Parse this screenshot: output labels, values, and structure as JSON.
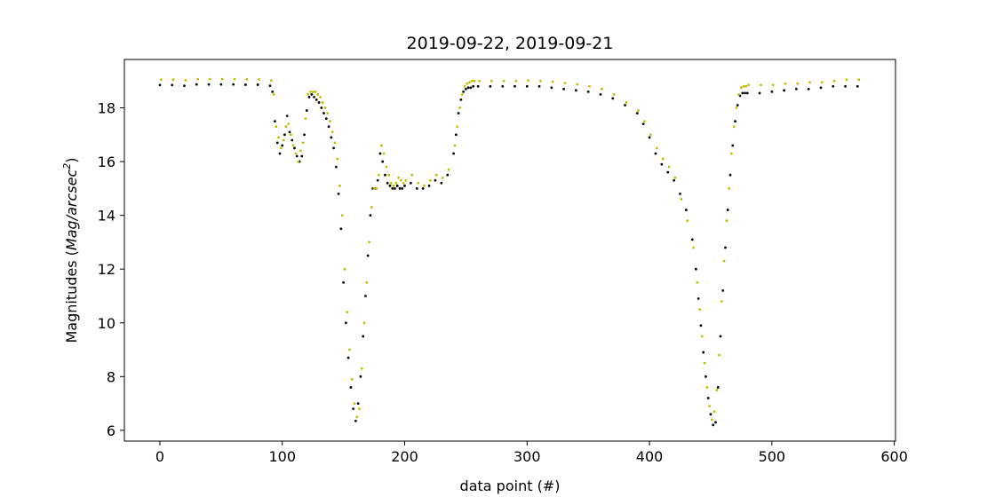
{
  "chart_data": {
    "type": "scatter",
    "title": "2019-09-22, 2019-09-21",
    "xlabel": "data point (#)",
    "ylabel_prefix": "Magnitudes (",
    "ylabel_italic": "Mag/arcsec",
    "ylabel_sup": "2",
    "ylabel_suffix": ")",
    "xlim": [
      -29,
      601
    ],
    "ylim": [
      5.6,
      19.8
    ],
    "xticks": [
      "0",
      "100",
      "200",
      "300",
      "400",
      "500",
      "600"
    ],
    "yticks": [
      "6",
      "8",
      "10",
      "12",
      "14",
      "16",
      "18"
    ],
    "grid": false,
    "legend": "none",
    "series_colors": [
      "#000000",
      "#bfbf00"
    ],
    "series": [
      {
        "color": "#000000",
        "x": [
          0,
          10,
          20,
          30,
          40,
          50,
          60,
          70,
          80,
          90,
          92,
          94,
          96,
          98,
          100,
          102,
          104,
          106,
          108,
          110,
          112,
          114,
          116,
          118,
          120,
          122,
          124,
          126,
          128,
          130,
          132,
          134,
          136,
          138,
          140,
          142,
          144,
          146,
          148,
          150,
          152,
          154,
          156,
          158,
          160,
          162,
          164,
          166,
          168,
          170,
          172,
          174,
          176,
          178,
          180,
          182,
          184,
          186,
          188,
          190,
          192,
          194,
          196,
          198,
          200,
          205,
          210,
          215,
          220,
          225,
          230,
          235,
          240,
          242,
          244,
          246,
          248,
          250,
          252,
          254,
          256,
          260,
          270,
          280,
          290,
          300,
          310,
          320,
          330,
          340,
          350,
          360,
          370,
          380,
          390,
          395,
          400,
          405,
          410,
          415,
          420,
          425,
          430,
          435,
          438,
          440,
          442,
          444,
          446,
          448,
          450,
          452,
          454,
          456,
          458,
          460,
          462,
          464,
          466,
          468,
          470,
          472,
          474,
          476,
          478,
          480,
          490,
          500,
          510,
          520,
          530,
          540,
          550,
          560,
          570
        ],
        "y": [
          18.85,
          18.85,
          18.82,
          18.87,
          18.87,
          18.87,
          18.87,
          18.86,
          18.86,
          18.82,
          18.6,
          17.5,
          16.7,
          16.3,
          16.6,
          17.0,
          17.7,
          17.1,
          16.8,
          16.5,
          16.2,
          16.0,
          16.2,
          17.0,
          17.9,
          18.4,
          18.5,
          18.4,
          18.3,
          18.2,
          18.0,
          17.8,
          17.6,
          17.3,
          16.9,
          16.5,
          15.8,
          14.8,
          13.5,
          11.5,
          10.0,
          8.7,
          7.6,
          6.8,
          6.35,
          7.0,
          8.0,
          9.5,
          11.0,
          12.5,
          14.0,
          15.0,
          15.0,
          15.3,
          16.3,
          16.0,
          15.5,
          15.2,
          15.1,
          15.0,
          15.0,
          15.1,
          15.0,
          15.0,
          15.1,
          15.2,
          15.0,
          15.0,
          15.1,
          15.3,
          15.2,
          15.5,
          16.3,
          17.0,
          17.8,
          18.3,
          18.6,
          18.7,
          18.75,
          18.75,
          18.8,
          18.8,
          18.8,
          18.8,
          18.8,
          18.8,
          18.8,
          18.75,
          18.7,
          18.65,
          18.6,
          18.5,
          18.35,
          18.1,
          17.8,
          17.4,
          16.9,
          16.3,
          15.9,
          15.6,
          15.3,
          14.8,
          14.2,
          13.1,
          12.0,
          10.9,
          9.9,
          8.9,
          8.0,
          7.2,
          6.6,
          6.2,
          6.3,
          7.6,
          9.5,
          11.2,
          12.8,
          14.2,
          15.5,
          16.6,
          17.5,
          18.1,
          18.45,
          18.55,
          18.55,
          18.55,
          18.55,
          18.6,
          18.65,
          18.7,
          18.7,
          18.75,
          18.8,
          18.8,
          18.8
        ]
      },
      {
        "color": "#bfbf00",
        "x": [
          1,
          11,
          21,
          31,
          41,
          51,
          61,
          71,
          81,
          91,
          93,
          95,
          97,
          99,
          101,
          103,
          105,
          107,
          109,
          111,
          113,
          115,
          117,
          119,
          121,
          123,
          125,
          127,
          129,
          131,
          133,
          135,
          137,
          139,
          141,
          143,
          145,
          147,
          149,
          151,
          153,
          155,
          157,
          159,
          161,
          163,
          165,
          167,
          169,
          171,
          173,
          175,
          177,
          179,
          181,
          183,
          185,
          187,
          189,
          191,
          193,
          195,
          197,
          199,
          201,
          206,
          211,
          216,
          221,
          226,
          231,
          236,
          241,
          243,
          245,
          247,
          249,
          251,
          253,
          255,
          257,
          261,
          271,
          281,
          291,
          301,
          311,
          321,
          331,
          341,
          351,
          361,
          371,
          381,
          391,
          396,
          401,
          406,
          411,
          416,
          421,
          426,
          431,
          436,
          439,
          441,
          443,
          445,
          447,
          449,
          451,
          453,
          455,
          457,
          459,
          461,
          463,
          465,
          467,
          469,
          471,
          473,
          475,
          477,
          479,
          481,
          491,
          501,
          511,
          521,
          531,
          541,
          551,
          561,
          571
        ],
        "y": [
          19.05,
          19.05,
          19.03,
          19.07,
          19.07,
          19.07,
          19.07,
          19.06,
          19.06,
          19.02,
          18.5,
          17.3,
          16.9,
          16.5,
          16.8,
          17.3,
          17.4,
          17.0,
          16.6,
          16.3,
          16.0,
          16.4,
          16.7,
          17.6,
          18.5,
          18.6,
          18.6,
          18.6,
          18.5,
          18.4,
          18.2,
          18.0,
          17.8,
          17.5,
          17.1,
          16.7,
          16.1,
          15.1,
          14.0,
          12.0,
          10.4,
          9.0,
          7.9,
          7.0,
          6.5,
          6.8,
          8.3,
          10.0,
          11.5,
          13.0,
          14.3,
          15.0,
          15.0,
          15.5,
          16.6,
          16.3,
          15.8,
          15.5,
          15.2,
          15.1,
          15.2,
          15.4,
          15.3,
          15.2,
          15.3,
          15.5,
          15.2,
          15.1,
          15.3,
          15.5,
          15.4,
          15.7,
          16.6,
          17.3,
          18.0,
          18.5,
          18.8,
          18.9,
          18.95,
          19.0,
          19.0,
          19.0,
          19.0,
          19.0,
          19.0,
          19.02,
          19.0,
          18.97,
          18.92,
          18.87,
          18.8,
          18.7,
          18.5,
          18.2,
          17.9,
          17.5,
          17.0,
          16.5,
          16.1,
          15.8,
          15.4,
          14.6,
          13.8,
          12.8,
          11.5,
          10.5,
          9.5,
          8.5,
          7.6,
          6.9,
          6.4,
          6.7,
          7.5,
          8.8,
          10.8,
          12.3,
          13.8,
          15.0,
          16.3,
          17.3,
          18.0,
          18.5,
          18.75,
          18.8,
          18.8,
          18.85,
          18.85,
          18.85,
          18.9,
          18.9,
          18.95,
          18.95,
          19.0,
          19.05,
          19.05
        ]
      }
    ]
  }
}
